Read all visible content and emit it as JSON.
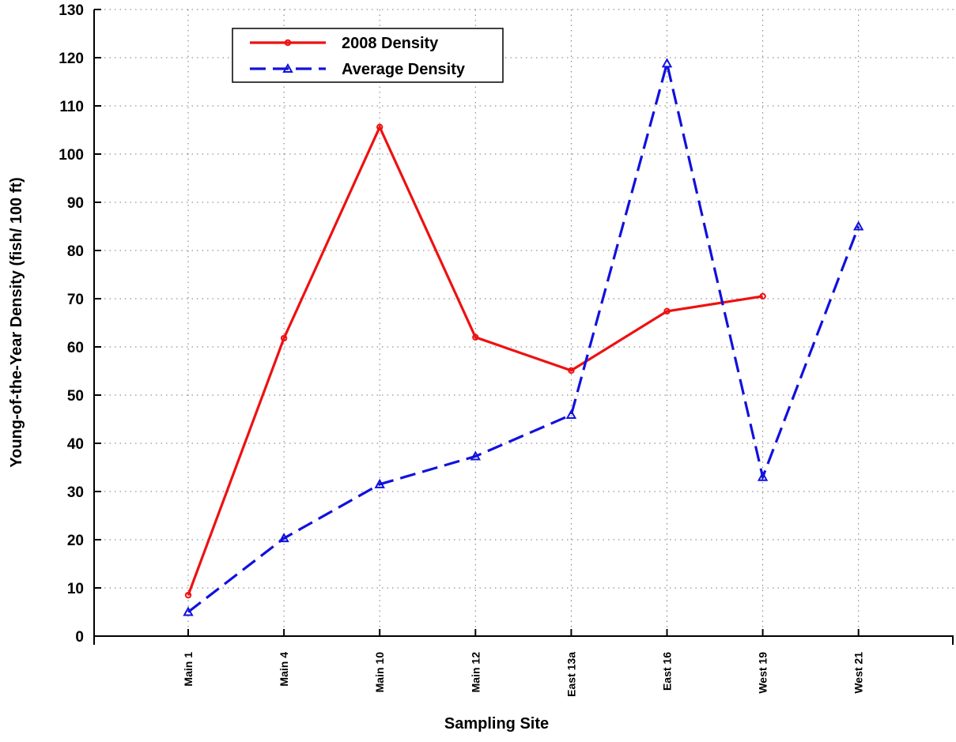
{
  "chart_data": {
    "type": "line",
    "title": "",
    "xlabel": "Sampling Site",
    "ylabel": "Young-of-the-Year Density (fish/ 100 ft)",
    "categories": [
      "Main 1",
      "Main 4",
      "Main 10",
      "Main 12",
      "East 13a",
      "East 16",
      "West 19",
      "West 21"
    ],
    "ylim": [
      0,
      130
    ],
    "yticks": [
      0,
      10,
      20,
      30,
      40,
      50,
      60,
      70,
      80,
      90,
      100,
      110,
      120,
      130
    ],
    "grid": true,
    "legend_position": "top-left",
    "series": [
      {
        "name": "2008 Density",
        "color": "#ee1111",
        "line_style": "solid",
        "marker": "circle",
        "values": [
          8.5,
          61.8,
          105.6,
          62.0,
          55.1,
          67.4,
          70.5,
          null
        ]
      },
      {
        "name": "Average Density",
        "color": "#1111dd",
        "line_style": "dashed",
        "marker": "triangle",
        "values": [
          5.0,
          20.3,
          31.5,
          37.3,
          45.9,
          118.8,
          33.0,
          85.0
        ]
      }
    ]
  }
}
